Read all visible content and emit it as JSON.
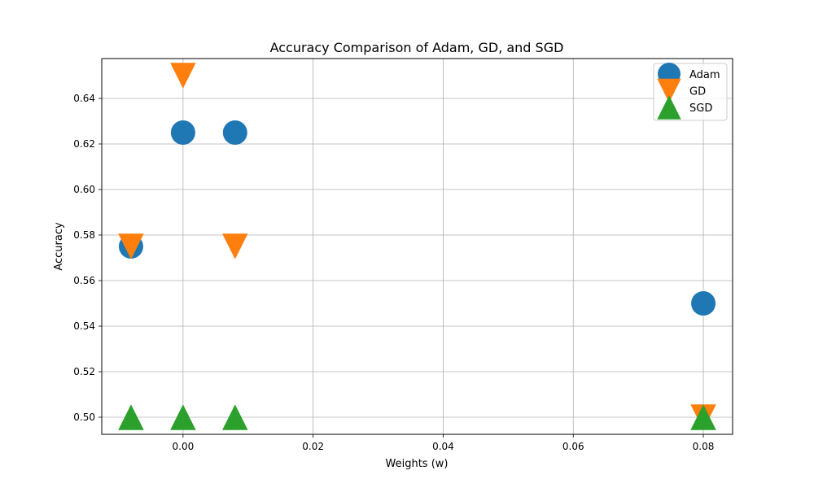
{
  "chart_data": {
    "type": "scatter",
    "title": "Accuracy Comparison of Adam, GD, and SGD",
    "xlabel": "Weights (w)",
    "ylabel": "Accuracy",
    "xlim": [
      -0.0125,
      0.0845
    ],
    "ylim": [
      0.4925,
      0.6575
    ],
    "xticks": [
      0.0,
      0.02,
      0.04,
      0.06,
      0.08
    ],
    "xtick_labels": [
      "0.00",
      "0.02",
      "0.04",
      "0.06",
      "0.08"
    ],
    "yticks": [
      0.5,
      0.52,
      0.54,
      0.56,
      0.58,
      0.6,
      0.62,
      0.64
    ],
    "ytick_labels": [
      "0.50",
      "0.52",
      "0.54",
      "0.56",
      "0.58",
      "0.60",
      "0.62",
      "0.64"
    ],
    "grid": true,
    "legend_position": "top-right",
    "series": [
      {
        "name": "Adam",
        "marker": "circle",
        "color": "#1f77b4",
        "x": [
          -0.008,
          0.0,
          0.008,
          0.08
        ],
        "y": [
          0.575,
          0.625,
          0.625,
          0.55
        ]
      },
      {
        "name": "GD",
        "marker": "triangle-down",
        "color": "#ff7f0e",
        "x": [
          -0.008,
          0.0,
          0.008,
          0.08
        ],
        "y": [
          0.575,
          0.65,
          0.575,
          0.5
        ]
      },
      {
        "name": "SGD",
        "marker": "triangle-up",
        "color": "#2ca02c",
        "x": [
          -0.008,
          0.0,
          0.008,
          0.08
        ],
        "y": [
          0.5,
          0.5,
          0.5,
          0.5
        ]
      }
    ]
  }
}
